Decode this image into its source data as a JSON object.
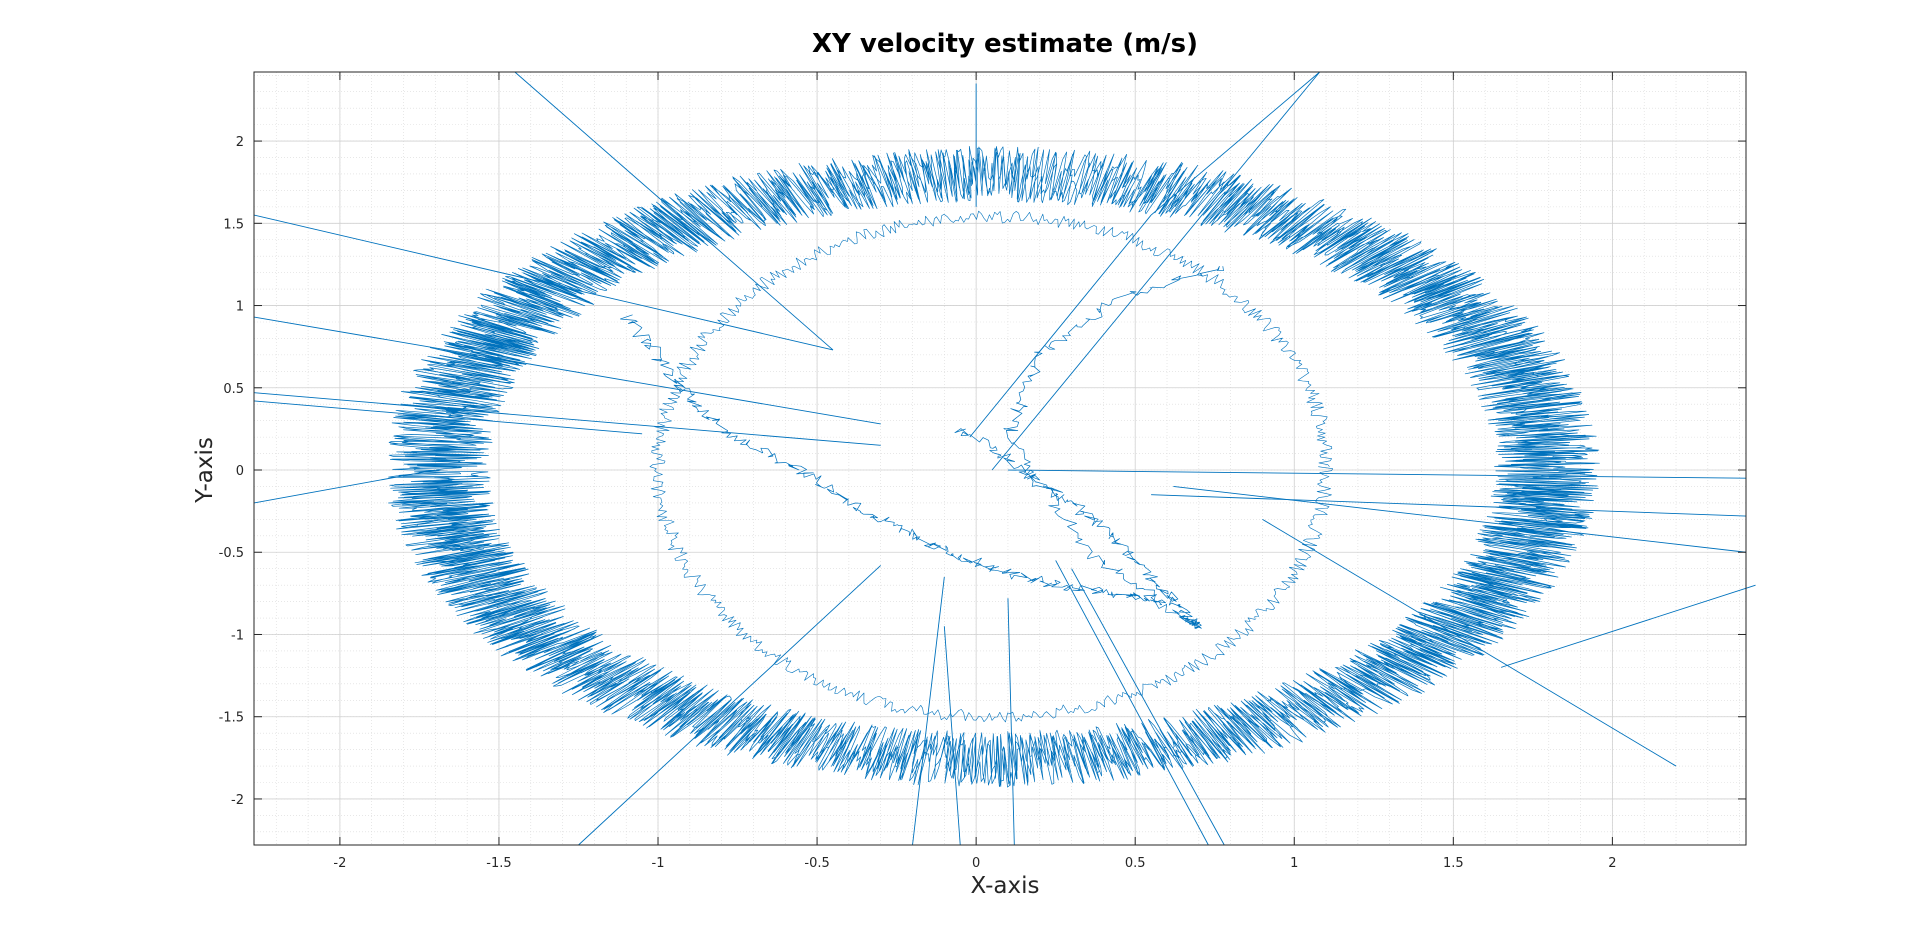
{
  "chart_data": {
    "type": "line",
    "title": "XY velocity estimate (m/s)",
    "xlabel": "X-axis",
    "ylabel": "Y-axis",
    "xlim": [
      -2.27,
      2.42
    ],
    "ylim": [
      -2.28,
      2.42
    ],
    "xticks": [
      -2,
      -1.5,
      -1,
      -0.5,
      0,
      0.5,
      1,
      1.5,
      2
    ],
    "yticks": [
      2,
      1.5,
      1,
      0.5,
      0,
      -0.5,
      -1,
      -1.5,
      -2
    ],
    "xtick_labels": [
      "-2",
      "-1.5",
      "-1",
      "-0.5",
      "0",
      "0.5",
      "1",
      "1.5",
      "2"
    ],
    "ytick_labels": [
      "2",
      "1.5",
      "1",
      "0.5",
      "0",
      "-0.5",
      "-1",
      "-1.5",
      "-2"
    ],
    "grid": true,
    "minor_grid": true,
    "series_color": "#0072BD",
    "series": [
      {
        "description_of_shape": "noisy elliptical ring",
        "center": [
          0.05,
          0.02
        ],
        "radius_x": 1.78,
        "radius_y": 1.78,
        "noise_amplitude": 0.17,
        "inner_rim": {
          "radius_x": 1.0,
          "radius_y": 1.6
        }
      },
      {
        "description_of_shape": "central diagonal band",
        "x": [
          -0.05,
          0.15,
          0.3,
          0.45,
          0.6,
          0.7,
          0.65,
          0.35,
          0.1,
          0.2,
          0.45,
          0.8
        ],
        "y": [
          0.25,
          0.0,
          -0.2,
          -0.45,
          -0.75,
          -0.95,
          -0.9,
          -0.5,
          0.2,
          0.7,
          1.05,
          1.25
        ]
      },
      {
        "description_of_shape": "left arc",
        "x": [
          -1.1,
          -0.95,
          -0.8,
          -0.55,
          -0.35,
          -0.15,
          0.05,
          0.25,
          0.45,
          0.6
        ],
        "y": [
          0.95,
          0.55,
          0.25,
          0.0,
          -0.25,
          -0.45,
          -0.6,
          -0.7,
          -0.75,
          -0.8
        ]
      }
    ],
    "outliers": [
      [
        [
          -2.27,
          1.55
        ],
        [
          -0.45,
          0.73
        ]
      ],
      [
        [
          -1.45,
          2.42
        ],
        [
          -0.45,
          0.73
        ]
      ],
      [
        [
          -2.27,
          0.93
        ],
        [
          -0.3,
          0.28
        ]
      ],
      [
        [
          -2.27,
          0.47
        ],
        [
          -0.3,
          0.15
        ]
      ],
      [
        [
          -2.27,
          0.42
        ],
        [
          -1.05,
          0.22
        ]
      ],
      [
        [
          -2.27,
          -0.2
        ],
        [
          -1.7,
          0.0
        ]
      ],
      [
        [
          1.08,
          2.42
        ],
        [
          0.05,
          0.0
        ]
      ],
      [
        [
          0.1,
          0.0
        ],
        [
          2.42,
          -0.05
        ]
      ],
      [
        [
          0.62,
          -0.1
        ],
        [
          2.42,
          -0.5
        ]
      ],
      [
        [
          0.55,
          -0.15
        ],
        [
          2.42,
          -0.28
        ]
      ],
      [
        [
          0.9,
          -0.3
        ],
        [
          2.2,
          -1.8
        ]
      ],
      [
        [
          -1.25,
          -2.28
        ],
        [
          -0.3,
          -0.58
        ]
      ],
      [
        [
          -0.1,
          -0.95
        ],
        [
          -0.05,
          -2.28
        ]
      ],
      [
        [
          -0.2,
          -2.28
        ],
        [
          -0.1,
          -0.65
        ]
      ],
      [
        [
          0.1,
          -0.78
        ],
        [
          0.12,
          -2.28
        ]
      ],
      [
        [
          0.25,
          -0.55
        ],
        [
          0.73,
          -2.28
        ]
      ],
      [
        [
          0.3,
          -0.6
        ],
        [
          0.78,
          -2.28
        ]
      ],
      [
        [
          -0.02,
          0.2
        ],
        [
          0.55,
          1.55
        ]
      ],
      [
        [
          0.55,
          1.55
        ],
        [
          1.08,
          2.42
        ]
      ],
      [
        [
          0.0,
          2.35
        ],
        [
          0.0,
          1.6
        ]
      ],
      [
        [
          1.65,
          -1.2
        ],
        [
          2.45,
          -0.7
        ]
      ]
    ]
  }
}
